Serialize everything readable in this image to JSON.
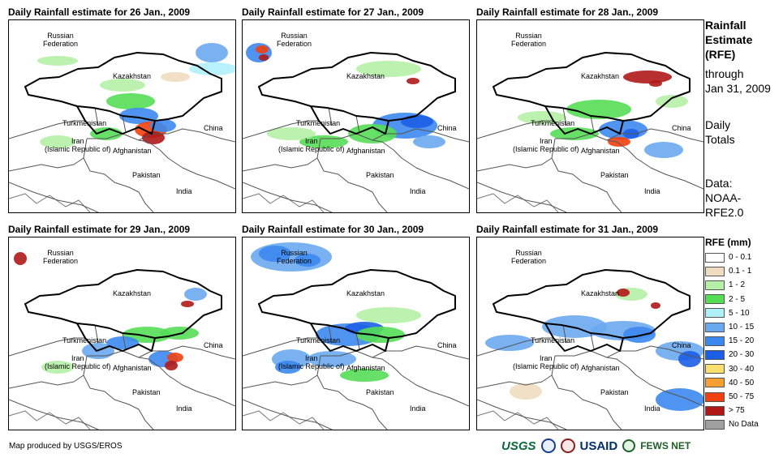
{
  "panels": [
    {
      "title": "Daily Rainfall estimate for 26 Jan., 2009"
    },
    {
      "title": "Daily Rainfall estimate for 27 Jan., 2009"
    },
    {
      "title": "Daily Rainfall estimate for 28 Jan., 2009"
    },
    {
      "title": "Daily Rainfall estimate for 29 Jan., 2009"
    },
    {
      "title": "Daily Rainfall estimate for 30 Jan., 2009"
    },
    {
      "title": "Daily Rainfall estimate for 31 Jan., 2009"
    }
  ],
  "map_labels": {
    "russia": "Russian\nFederation",
    "kazakhstan": "Kazakhstan",
    "turkmenistan": "Turkmenistan",
    "iran": "Iran\n(Islamic Republic of)",
    "afghanistan": "Afghanistan",
    "pakistan": "Pakistan",
    "china": "China",
    "india": "India"
  },
  "side": {
    "title_line1": "Rainfall",
    "title_line2": "Estimate",
    "title_line3": "(RFE)",
    "through": "through",
    "date": "Jan 31, 2009",
    "totals1": "Daily",
    "totals2": "Totals",
    "data1": "Data:",
    "data2": "NOAA-",
    "data3": "RFE2.0"
  },
  "legend": {
    "title": "RFE (mm)",
    "items": [
      {
        "label": "0 - 0.1",
        "color": "#ffffff"
      },
      {
        "label": "0.1 - 1",
        "color": "#f0dcc0"
      },
      {
        "label": "1 - 2",
        "color": "#b6f0a6"
      },
      {
        "label": "2 - 5",
        "color": "#55dd55"
      },
      {
        "label": "5 - 10",
        "color": "#b0f0f8"
      },
      {
        "label": "10 - 15",
        "color": "#6aa8f0"
      },
      {
        "label": "15 - 20",
        "color": "#3c88ee"
      },
      {
        "label": "20 - 30",
        "color": "#1c5ee6"
      },
      {
        "label": "30 - 40",
        "color": "#f8e070"
      },
      {
        "label": "40 - 50",
        "color": "#f5a030"
      },
      {
        "label": "50 - 75",
        "color": "#f04010"
      },
      {
        "label": "> 75",
        "color": "#b01818"
      },
      {
        "label": "No Data",
        "color": "#a0a0a0"
      }
    ]
  },
  "credit": "Map produced by USGS/EROS",
  "logos": {
    "usgs": "USGS",
    "usaid": "USAID",
    "fews": "FEWS NET"
  }
}
